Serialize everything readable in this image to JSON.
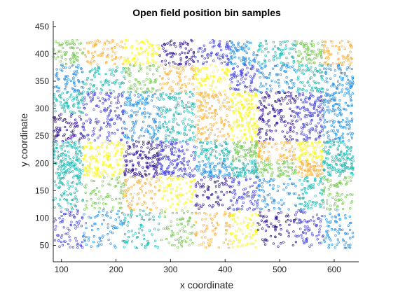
{
  "chart_data": {
    "type": "scatter",
    "title": "Open field position bin samples",
    "xlabel": "x coordinate",
    "ylabel": "y coordinate",
    "xlim": [
      85,
      645
    ],
    "ylim": [
      20,
      460
    ],
    "xticks": [
      100,
      200,
      300,
      400,
      500,
      600
    ],
    "yticks": [
      50,
      100,
      150,
      200,
      250,
      300,
      350,
      400,
      450
    ],
    "grid": false,
    "legend": "none",
    "marker": "open-circle",
    "palette": {
      "dark-purple": "#3b1f9e",
      "blue": "#4f4fe0",
      "sky-blue": "#2e95ea",
      "teal": "#26bcb5",
      "green": "#7dcb5a",
      "orange": "#fbb545",
      "yellow": "#f7f525"
    },
    "bin_columns_x": [
      [
        85,
        140
      ],
      [
        140,
        215
      ],
      [
        215,
        280
      ],
      [
        280,
        345
      ],
      [
        345,
        410
      ],
      [
        410,
        460
      ],
      [
        460,
        530
      ],
      [
        530,
        580
      ],
      [
        580,
        635
      ]
    ],
    "bin_rows_y": [
      [
        380,
        425
      ],
      [
        330,
        380
      ],
      [
        290,
        330
      ],
      [
        240,
        290
      ],
      [
        205,
        240
      ],
      [
        175,
        205
      ],
      [
        115,
        175
      ],
      [
        45,
        115
      ]
    ],
    "bin_grid": [
      [
        "green",
        "orange",
        "yellow",
        "dark-purple",
        "blue",
        "sky-blue",
        "teal",
        "green",
        "orange"
      ],
      [
        "sky-blue",
        "teal",
        "green",
        "orange",
        "yellow",
        "blue",
        "sky-blue",
        "teal",
        "sky-blue"
      ],
      [
        "teal",
        "blue",
        "sky-blue",
        "teal",
        "orange",
        "yellow",
        "dark-purple",
        "blue",
        "sky-blue"
      ],
      [
        "dark-purple",
        "blue",
        "sky-blue",
        "teal",
        "orange",
        "yellow",
        "dark-purple",
        "blue",
        "sky-blue"
      ],
      [
        "teal",
        "yellow",
        "dark-purple",
        "blue",
        "teal",
        "green",
        "orange",
        "yellow",
        "teal"
      ],
      [
        "teal",
        "yellow",
        "dark-purple",
        "blue",
        "sky-blue",
        "teal",
        "green",
        "orange",
        "teal"
      ],
      [
        "teal",
        "green",
        "orange",
        "yellow",
        "dark-purple",
        "blue",
        "sky-blue",
        "teal",
        "green"
      ],
      [
        "blue",
        "sky-blue",
        "teal",
        "green",
        "orange",
        "yellow",
        "dark-purple",
        "blue",
        "sky-blue"
      ]
    ]
  }
}
